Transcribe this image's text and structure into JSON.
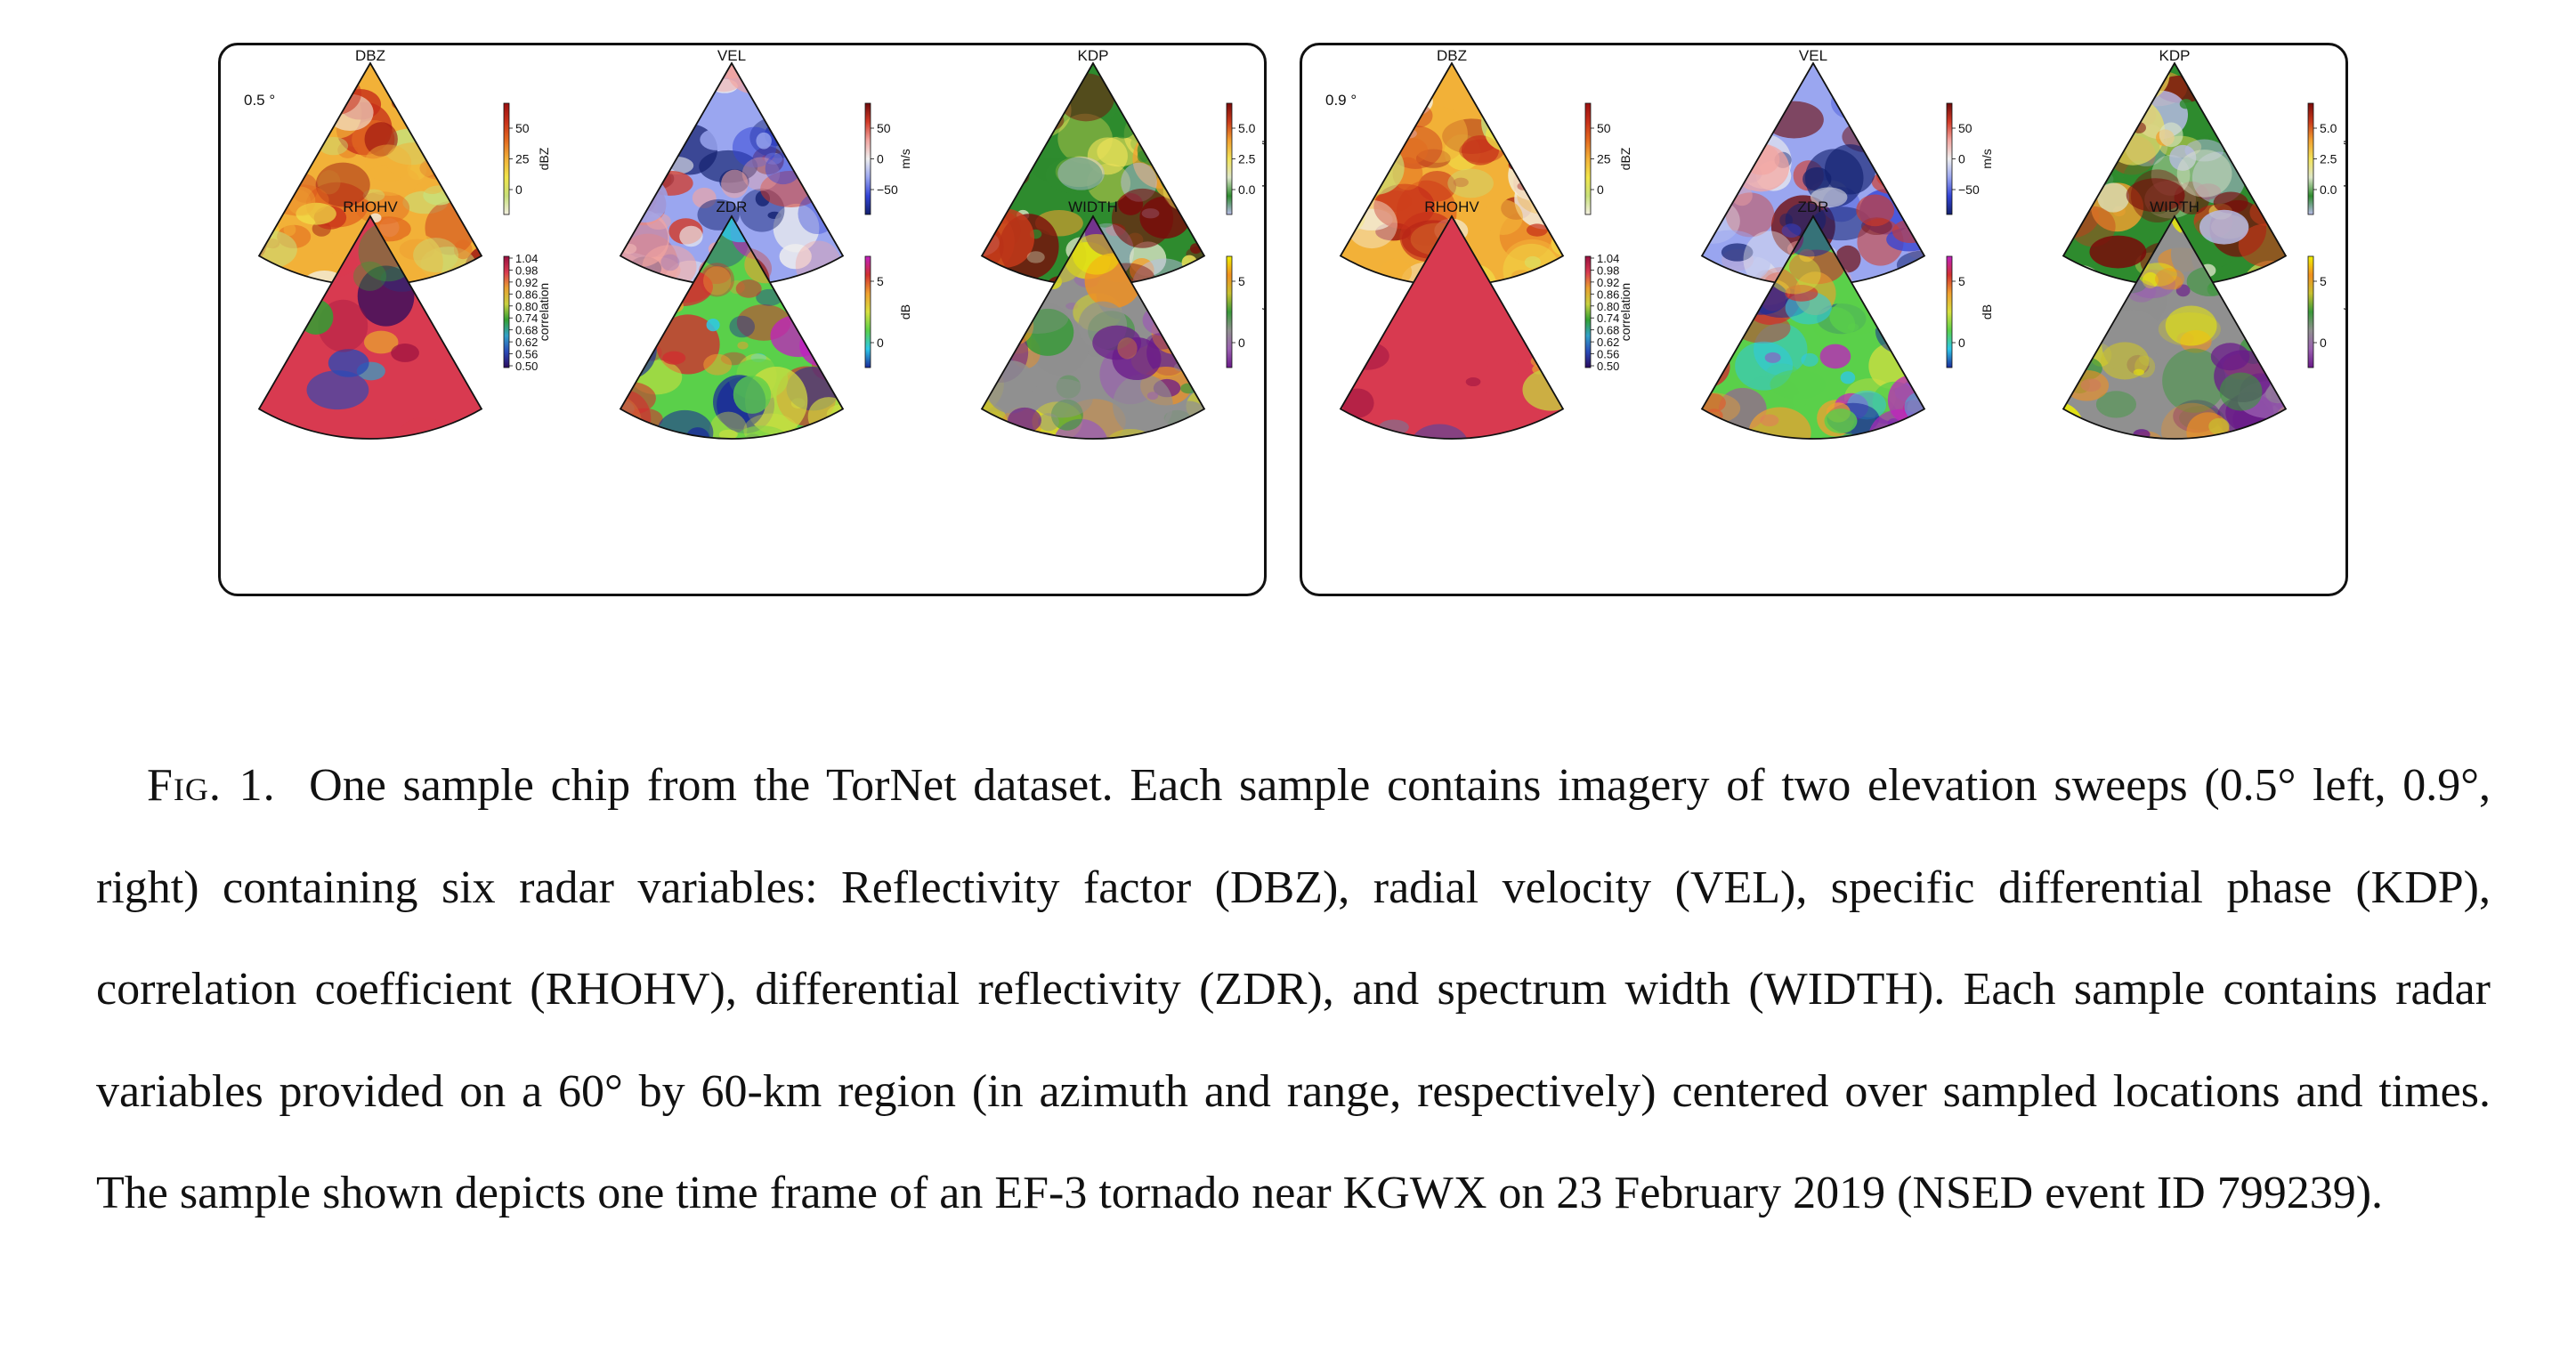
{
  "panels": [
    {
      "id": "left",
      "elevation_label": "0.5 °",
      "plots": [
        {
          "title": "DBZ",
          "cbar_label": "dBZ",
          "ticks": [
            "50",
            "25",
            "0"
          ],
          "colormap": [
            "#f3efe0",
            "#c8e07a",
            "#f0e54a",
            "#f2b138",
            "#e36a20",
            "#c7301a",
            "#9a1010"
          ],
          "field": "dbz-left"
        },
        {
          "title": "VEL",
          "cbar_label": "m/s",
          "ticks": [
            "50",
            "0",
            "−50"
          ],
          "colormap": [
            "#12206e",
            "#3344d6",
            "#9aa6f0",
            "#eeeeee",
            "#f2a5a0",
            "#d23a28",
            "#6e0b0b"
          ],
          "field": "vel-left"
        },
        {
          "title": "KDP",
          "cbar_label": "degrees/km",
          "ticks": [
            "5.0",
            "2.5",
            "0.0"
          ],
          "colormap": [
            "#b9bce8",
            "#2e8b2e",
            "#dde6c8",
            "#f2e35a",
            "#f2a030",
            "#c83a1a",
            "#7a0a0a"
          ],
          "field": "kdp-left"
        },
        {
          "title": "RHOHV",
          "cbar_label": "correlation",
          "ticks": [
            "1.04",
            "0.98",
            "0.92",
            "0.86",
            "0.80",
            "0.74",
            "0.68",
            "0.62",
            "0.56",
            "0.50"
          ],
          "colormap": [
            "#2a0a5e",
            "#2a4ab8",
            "#33a0c8",
            "#33a033",
            "#c8d040",
            "#e8a030",
            "#d83a50",
            "#9a1040"
          ],
          "field": "rhohv-left"
        },
        {
          "title": "ZDR",
          "cbar_label": "dB",
          "ticks": [
            "5",
            "0"
          ],
          "colormap": [
            "#1a2a9a",
            "#2ec8e8",
            "#5ad04a",
            "#d8e040",
            "#f0a030",
            "#d03030",
            "#c020c0"
          ],
          "field": "zdr-left"
        },
        {
          "title": "WIDTH",
          "cbar_label": "m/s",
          "ticks": [
            "5",
            "0"
          ],
          "colormap": [
            "#6a1a8a",
            "#9a60b0",
            "#909090",
            "#3a9a3a",
            "#c8c030",
            "#f09020",
            "#f0f000"
          ],
          "field": "width-left"
        }
      ]
    },
    {
      "id": "right",
      "elevation_label": "0.9 °",
      "plots": [
        {
          "title": "DBZ",
          "cbar_label": "dBZ",
          "ticks": [
            "50",
            "25",
            "0"
          ],
          "colormap": [
            "#f3efe0",
            "#c8e07a",
            "#f0e54a",
            "#f2b138",
            "#e36a20",
            "#c7301a",
            "#9a1010"
          ],
          "field": "dbz-right"
        },
        {
          "title": "VEL",
          "cbar_label": "m/s",
          "ticks": [
            "50",
            "0",
            "−50"
          ],
          "colormap": [
            "#12206e",
            "#3344d6",
            "#9aa6f0",
            "#eeeeee",
            "#f2a5a0",
            "#d23a28",
            "#6e0b0b"
          ],
          "field": "vel-right"
        },
        {
          "title": "KDP",
          "cbar_label": "degrees/km",
          "ticks": [
            "5.0",
            "2.5",
            "0.0"
          ],
          "colormap": [
            "#b9bce8",
            "#2e8b2e",
            "#dde6c8",
            "#f2e35a",
            "#f2a030",
            "#c83a1a",
            "#7a0a0a"
          ],
          "field": "kdp-right"
        },
        {
          "title": "RHOHV",
          "cbar_label": "correlation",
          "ticks": [
            "1.04",
            "0.98",
            "0.92",
            "0.86",
            "0.80",
            "0.74",
            "0.68",
            "0.62",
            "0.56",
            "0.50"
          ],
          "colormap": [
            "#2a0a5e",
            "#2a4ab8",
            "#33a0c8",
            "#33a033",
            "#c8d040",
            "#e8a030",
            "#d83a50",
            "#9a1040"
          ],
          "field": "rhohv-right"
        },
        {
          "title": "ZDR",
          "cbar_label": "dB",
          "ticks": [
            "5",
            "0"
          ],
          "colormap": [
            "#1a2a9a",
            "#2ec8e8",
            "#5ad04a",
            "#d8e040",
            "#f0a030",
            "#d03030",
            "#c020c0"
          ],
          "field": "zdr-right"
        },
        {
          "title": "WIDTH",
          "cbar_label": "m/s",
          "ticks": [
            "5",
            "0"
          ],
          "colormap": [
            "#6a1a8a",
            "#9a60b0",
            "#909090",
            "#3a9a3a",
            "#c8c030",
            "#f09020",
            "#f0f000"
          ],
          "field": "width-right"
        }
      ]
    }
  ],
  "caption": {
    "label": "Fig. 1.",
    "text": "One sample chip from the TorNet dataset.  Each sample contains imagery of two elevation sweeps (0.5° left, 0.9°, right) containing six radar variables: Reflectivity factor (DBZ), radial velocity (VEL), specific differential phase (KDP), correlation coefficient (RHOHV), differential reflectivity (ZDR), and spectrum width (WIDTH). Each sample contains radar variables provided on a 60° by 60-km region (in azimuth and range, respectively) centered over sampled locations and times.  The sample shown depicts one time frame of an EF-3 tornado near KGWX on 23 February 2019 (NSED event ID 799239)."
  }
}
